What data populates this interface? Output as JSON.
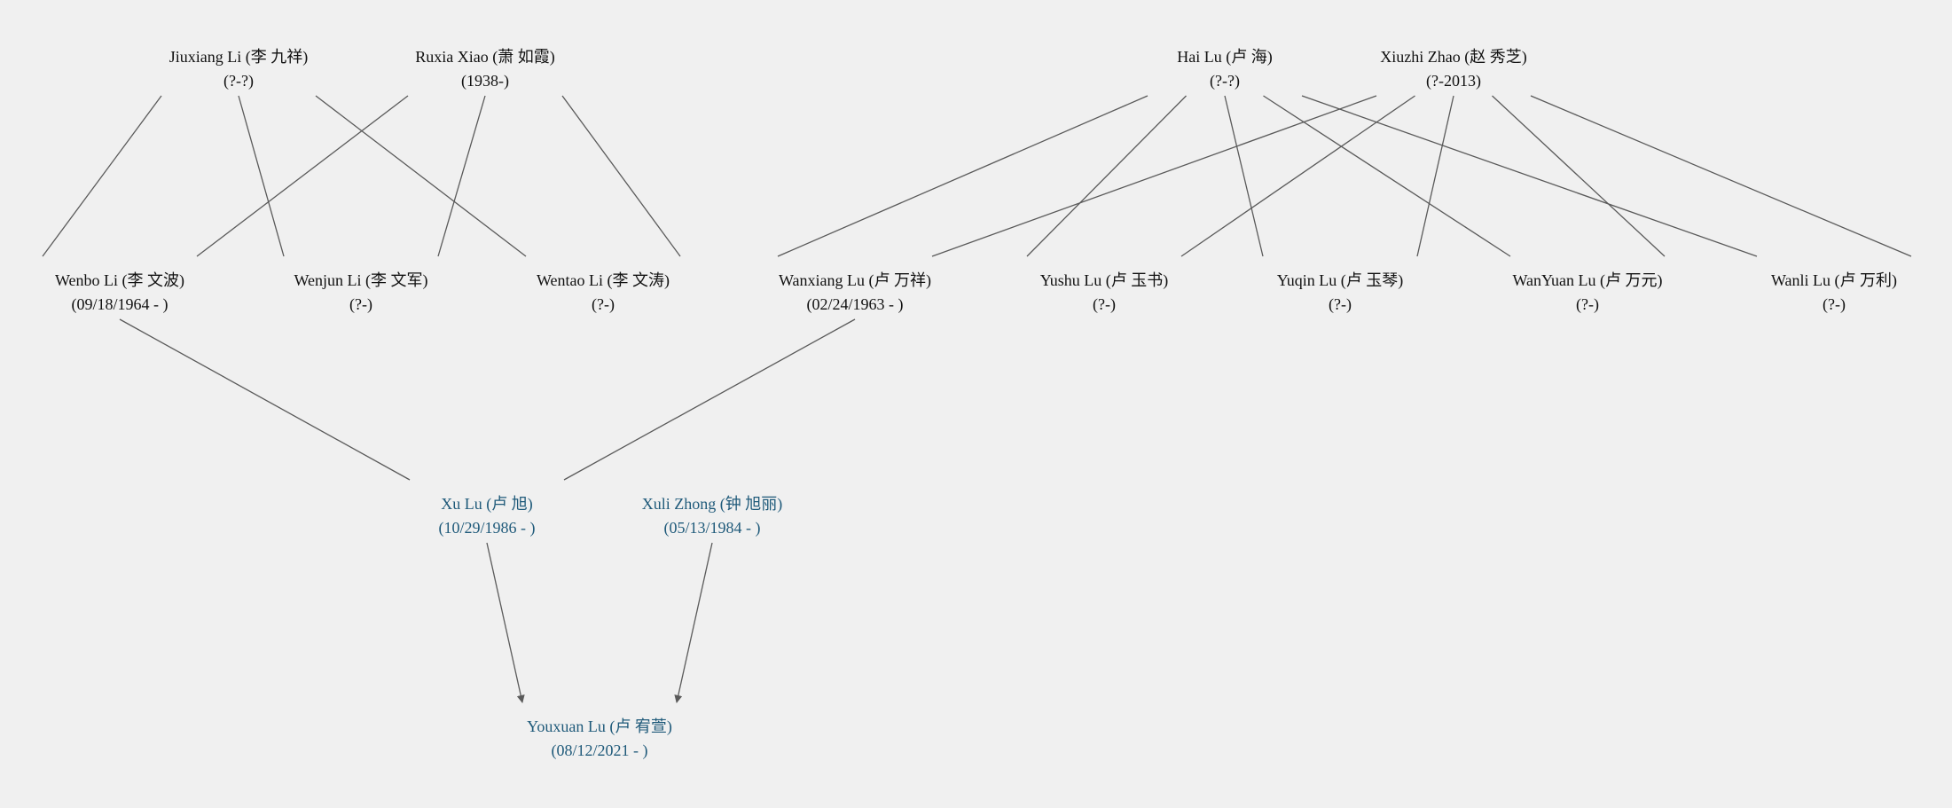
{
  "colors": {
    "background": "#f0f0f0",
    "line": "#5a5a5a",
    "ancestor_text": "#111111",
    "highlight_text": "#1f5a7a"
  },
  "people": {
    "jiuxiang_li": {
      "name": "Jiuxiang Li (李 九祥)",
      "dates": "(?-?)"
    },
    "ruxia_xiao": {
      "name": "Ruxia Xiao (萧 如霞)",
      "dates": "(1938-)"
    },
    "hai_lu": {
      "name": "Hai Lu (卢 海)",
      "dates": "(?-?)"
    },
    "xiuzhi_zhao": {
      "name": "Xiuzhi Zhao (赵 秀芝)",
      "dates": "(?-2013)"
    },
    "wenbo_li": {
      "name": "Wenbo Li (李 文波)",
      "dates": "(09/18/1964 - )"
    },
    "wenjun_li": {
      "name": "Wenjun Li (李 文军)",
      "dates": "(?-)"
    },
    "wentao_li": {
      "name": "Wentao Li (李 文涛)",
      "dates": "(?-)"
    },
    "wanxiang_lu": {
      "name": "Wanxiang Lu (卢 万祥)",
      "dates": "(02/24/1963 - )"
    },
    "yushu_lu": {
      "name": "Yushu Lu (卢 玉书)",
      "dates": "(?-)"
    },
    "yuqin_lu": {
      "name": "Yuqin Lu (卢 玉琴)",
      "dates": "(?-)"
    },
    "wanyuan_lu": {
      "name": "WanYuan Lu (卢 万元)",
      "dates": "(?-)"
    },
    "wanli_lu": {
      "name": "Wanli Lu (卢 万利)",
      "dates": "(?-)"
    },
    "xu_lu": {
      "name": "Xu Lu (卢 旭)",
      "dates": "(10/29/1986 - )"
    },
    "xuli_zhong": {
      "name": "Xuli Zhong (钟 旭丽)",
      "dates": "(05/13/1984 - )"
    },
    "youxuan_lu": {
      "name": "Youxuan Lu (卢 宥萱)",
      "dates": "(08/12/2021 - )"
    }
  },
  "relations": [
    {
      "parent": "jiuxiang_li",
      "child": "wenbo_li"
    },
    {
      "parent": "jiuxiang_li",
      "child": "wenjun_li"
    },
    {
      "parent": "jiuxiang_li",
      "child": "wentao_li"
    },
    {
      "parent": "ruxia_xiao",
      "child": "wenbo_li"
    },
    {
      "parent": "ruxia_xiao",
      "child": "wenjun_li"
    },
    {
      "parent": "ruxia_xiao",
      "child": "wentao_li"
    },
    {
      "parent": "hai_lu",
      "child": "wanxiang_lu"
    },
    {
      "parent": "hai_lu",
      "child": "yushu_lu"
    },
    {
      "parent": "hai_lu",
      "child": "yuqin_lu"
    },
    {
      "parent": "hai_lu",
      "child": "wanyuan_lu"
    },
    {
      "parent": "hai_lu",
      "child": "wanli_lu"
    },
    {
      "parent": "xiuzhi_zhao",
      "child": "wanxiang_lu"
    },
    {
      "parent": "xiuzhi_zhao",
      "child": "yushu_lu"
    },
    {
      "parent": "xiuzhi_zhao",
      "child": "yuqin_lu"
    },
    {
      "parent": "xiuzhi_zhao",
      "child": "wanyuan_lu"
    },
    {
      "parent": "xiuzhi_zhao",
      "child": "wanli_lu"
    },
    {
      "parent": "wenbo_li",
      "child": "xu_lu"
    },
    {
      "parent": "wanxiang_lu",
      "child": "xu_lu"
    },
    {
      "parent": "xu_lu",
      "child": "youxuan_lu",
      "arrow": true
    },
    {
      "parent": "xuli_zhong",
      "child": "youxuan_lu",
      "arrow": true
    }
  ]
}
